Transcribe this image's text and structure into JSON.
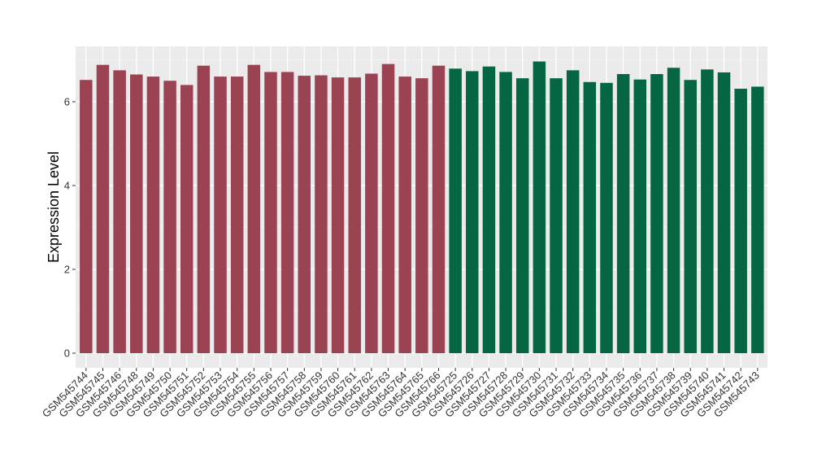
{
  "chart_data": {
    "type": "bar",
    "title": "",
    "xlabel": "",
    "ylabel": "Expression Level",
    "ylim": [
      0,
      7.25
    ],
    "yticks": [
      0,
      2,
      4,
      6
    ],
    "ytick_labels": [
      "0",
      "2",
      "4",
      "6"
    ],
    "grid": true,
    "legend": "none",
    "colors": {
      "group1": "#9b4352",
      "group2": "#056742",
      "panel_background": "#ebebeb",
      "grid_major": "#ffffff",
      "grid_minor": "#f4f4f4"
    },
    "categories": [
      "GSM545744",
      "GSM545745",
      "GSM545746",
      "GSM545748",
      "GSM545749",
      "GSM545750",
      "GSM545751",
      "GSM545752",
      "GSM545753",
      "GSM545754",
      "GSM545755",
      "GSM545756",
      "GSM545757",
      "GSM545758",
      "GSM545759",
      "GSM545760",
      "GSM545761",
      "GSM545762",
      "GSM545763",
      "GSM545764",
      "GSM545765",
      "GSM545766",
      "GSM545725",
      "GSM545726",
      "GSM545727",
      "GSM545728",
      "GSM545729",
      "GSM545730",
      "GSM545731",
      "GSM545732",
      "GSM545733",
      "GSM545734",
      "GSM545735",
      "GSM545736",
      "GSM545737",
      "GSM545738",
      "GSM545739",
      "GSM545740",
      "GSM545741",
      "GSM545742",
      "GSM545743"
    ],
    "values": [
      6.52,
      6.88,
      6.75,
      6.65,
      6.6,
      6.5,
      6.4,
      6.86,
      6.6,
      6.6,
      6.88,
      6.71,
      6.71,
      6.62,
      6.63,
      6.58,
      6.58,
      6.67,
      6.9,
      6.6,
      6.56,
      6.86,
      6.79,
      6.73,
      6.84,
      6.71,
      6.56,
      6.96,
      6.56,
      6.75,
      6.47,
      6.45,
      6.66,
      6.53,
      6.66,
      6.81,
      6.52,
      6.77,
      6.7,
      6.31,
      6.36
    ],
    "groups": [
      1,
      1,
      1,
      1,
      1,
      1,
      1,
      1,
      1,
      1,
      1,
      1,
      1,
      1,
      1,
      1,
      1,
      1,
      1,
      1,
      1,
      1,
      2,
      2,
      2,
      2,
      2,
      2,
      2,
      2,
      2,
      2,
      2,
      2,
      2,
      2,
      2,
      2,
      2,
      2,
      2
    ]
  }
}
